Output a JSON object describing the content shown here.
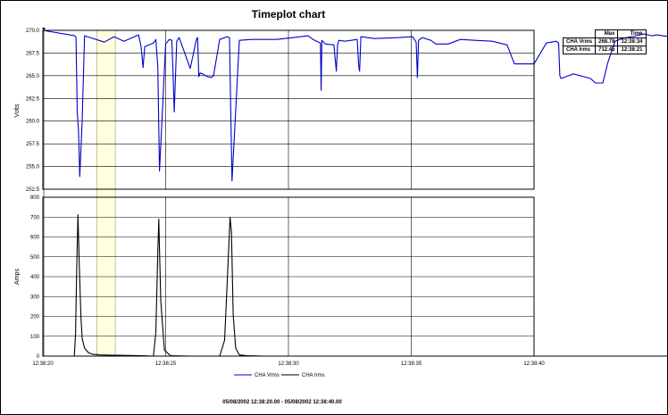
{
  "chart_data": {
    "type": "line",
    "title": "Timeplot chart",
    "x_tick_labels": [
      "12:38:20",
      "12:38:25",
      "12:38:30",
      "12:38:35",
      "12:38:40"
    ],
    "x_range_seconds_label": "",
    "date_range": "05/08/2002 12:38:20.00 - 05/08/2002 12:38:40.00",
    "panels": [
      {
        "ylabel": "Volts",
        "ylim": [
          252.5,
          270.0
        ],
        "y_ticks": [
          "270.0",
          "267.5",
          "265.0",
          "262.5",
          "260.0",
          "257.5",
          "255.0",
          "252.5"
        ],
        "series": [
          {
            "name": "CHA Vrms",
            "color": "#0000cc",
            "x": [
              20.0,
              21.3,
              21.35,
              21.4,
              21.45,
              21.5,
              21.6,
              21.7,
              22.5,
              22.9,
              23.3,
              23.9,
              24.0,
              24.08,
              24.15,
              24.5,
              24.6,
              24.68,
              24.75,
              25.0,
              25.15,
              25.25,
              25.3,
              25.35,
              25.45,
              25.55,
              26.0,
              26.25,
              26.3,
              26.35,
              26.4,
              26.5,
              26.7,
              26.85,
              26.95,
              27.2,
              27.5,
              27.6,
              27.65,
              27.7,
              28.0,
              28.5,
              29.5,
              30.2,
              30.8,
              31.0,
              31.3,
              31.33,
              31.36,
              31.5,
              31.85,
              31.95,
              32.0,
              32.05,
              32.3,
              32.8,
              32.86,
              32.9,
              32.95,
              33.5,
              34.5,
              35.05,
              35.2,
              35.25,
              35.3,
              35.45,
              35.8,
              36.0,
              36.5,
              37.0,
              37.6,
              38.3,
              38.9,
              39.2,
              40.0,
              40.5,
              40.9,
              41.0,
              41.05,
              41.1,
              41.6,
              42.3,
              42.5,
              42.8,
              43.0,
              43.3,
              43.6,
              43.95,
              44.0,
              44.3,
              44.5,
              44.8,
              45.0,
              46.0,
              47.0,
              47.2,
              47.8,
              48.0,
              48.05,
              48.1,
              48.5,
              49.0,
              49.5,
              50.3,
              50.6,
              51.3,
              51.6,
              52.5
            ],
            "y": [
              270.0,
              269.4,
              269.2,
              261.0,
              259.0,
              253.9,
              260.0,
              269.4,
              268.7,
              269.3,
              268.8,
              269.5,
              268.2,
              265.9,
              268.2,
              268.6,
              269.0,
              266.0,
              254.5,
              268.5,
              269.0,
              268.9,
              265.2,
              261.0,
              268.8,
              269.2,
              265.8,
              269.0,
              269.2,
              264.9,
              265.3,
              265.2,
              264.9,
              264.8,
              265.0,
              269.0,
              269.3,
              269.2,
              261.0,
              253.4,
              268.9,
              269.0,
              269.0,
              269.2,
              269.4,
              269.0,
              268.6,
              263.4,
              268.9,
              268.5,
              268.4,
              265.5,
              268.4,
              268.9,
              268.8,
              269.0,
              266.0,
              265.5,
              269.3,
              269.1,
              269.2,
              269.3,
              268.7,
              264.8,
              268.9,
              269.2,
              268.9,
              268.5,
              268.5,
              269.0,
              268.9,
              268.8,
              268.4,
              266.3,
              266.3,
              268.6,
              268.8,
              268.6,
              265.0,
              264.7,
              265.2,
              264.7,
              264.2,
              264.2,
              266.4,
              268.8,
              269.1,
              269.3,
              269.3,
              269.5,
              269.6,
              269.4,
              269.5,
              269.1,
              269.3,
              268.8,
              268.9,
              265.4,
              265.0,
              268.8,
              269.2,
              268.8,
              269.1,
              269.2,
              269.0,
              268.9,
              269.1,
              269.0
            ]
          }
        ]
      },
      {
        "ylabel": "Amps",
        "ylim": [
          0,
          800
        ],
        "y_ticks": [
          "800",
          "700",
          "600",
          "500",
          "400",
          "300",
          "200",
          "100",
          "0"
        ],
        "series": [
          {
            "name": "CHA Irms",
            "color": "#000000",
            "x": [
              20.0,
              21.0,
              21.28,
              21.33,
              21.38,
              21.43,
              21.48,
              21.55,
              21.6,
              21.7,
              21.85,
              22.0,
              22.3,
              23.0,
              24.0,
              24.5,
              24.6,
              24.68,
              24.72,
              24.8,
              24.95,
              25.2,
              26.0,
              26.6,
              27.2,
              27.4,
              27.55,
              27.62,
              27.68,
              27.75,
              27.85,
              28.0,
              28.3,
              29.0,
              30.0,
              35.0,
              40.0,
              52.0
            ],
            "y": [
              0,
              0,
              0,
              110,
              440,
              712,
              470,
              200,
              90,
              40,
              18,
              10,
              6,
              4,
              2,
              0,
              120,
              520,
              690,
              280,
              30,
              2,
              0,
              0,
              0,
              80,
              490,
              700,
              620,
              210,
              40,
              6,
              2,
              0,
              0,
              0,
              0,
              0
            ]
          }
        ]
      }
    ],
    "legend": [
      "CHA Vrms",
      "CHA Irms"
    ],
    "legend_placement": "bottom",
    "cursor_x": 20.0,
    "highlight_band": [
      22.2,
      22.95
    ],
    "grid": true
  },
  "stats_table": {
    "headers": [
      "",
      "Max",
      "Time"
    ],
    "rows": [
      {
        "label": "CHA Vrms",
        "max": "268.78",
        "time": "12:38:34"
      },
      {
        "label": "CHA Irms",
        "max": "712.45",
        "time": "12:38:21"
      }
    ]
  }
}
